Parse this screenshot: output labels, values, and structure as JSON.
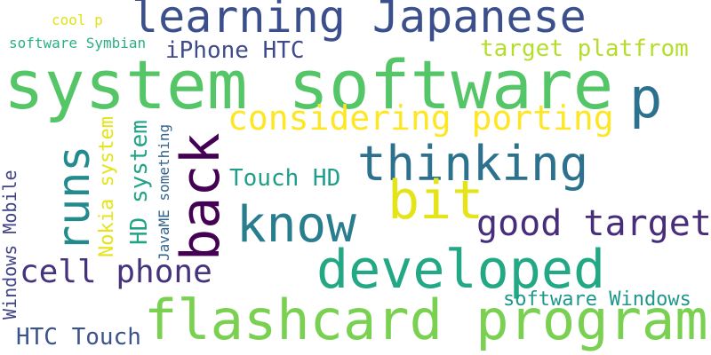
{
  "words": [
    {
      "id": "learning-japanese",
      "text": "learning Japanese",
      "color": "#3b4f8c"
    },
    {
      "id": "system-software",
      "text": "system software",
      "color": "#55c667"
    },
    {
      "id": "cool-p",
      "text": "cool p",
      "color": "#dfe318"
    },
    {
      "id": "software-symbian",
      "text": "software Symbian",
      "color": "#2ab07f"
    },
    {
      "id": "iphone-htc",
      "text": "iPhone HTC",
      "color": "#3e4a89"
    },
    {
      "id": "target-platfrom",
      "text": "target platfrom",
      "color": "#b5de2b"
    },
    {
      "id": "p",
      "text": "p",
      "color": "#2c728e"
    },
    {
      "id": "considering-porting",
      "text": "considering porting",
      "color": "#fde725"
    },
    {
      "id": "runs",
      "text": "runs",
      "color": "#238a8d"
    },
    {
      "id": "back",
      "text": "back",
      "color": "#440154"
    },
    {
      "id": "thinking",
      "text": "thinking",
      "color": "#2c728e"
    },
    {
      "id": "nokia-system",
      "text": "Nokia system",
      "color": "#e4e419"
    },
    {
      "id": "hd-system",
      "text": "HD system",
      "color": "#20a486"
    },
    {
      "id": "javame-something",
      "text": "JavaME something",
      "color": "#33638d"
    },
    {
      "id": "windows-mobile",
      "text": "Windows Mobile",
      "color": "#414487"
    },
    {
      "id": "touch-hd",
      "text": "Touch HD",
      "color": "#1f9e89"
    },
    {
      "id": "bit",
      "text": "bit",
      "color": "#e5e419"
    },
    {
      "id": "know",
      "text": "know",
      "color": "#287d8e"
    },
    {
      "id": "good-target",
      "text": "good target",
      "color": "#472d7b"
    },
    {
      "id": "cell-phone",
      "text": "cell phone",
      "color": "#46337e"
    },
    {
      "id": "developed",
      "text": "developed",
      "color": "#22a884"
    },
    {
      "id": "software-windows",
      "text": "software Windows",
      "color": "#1f988b"
    },
    {
      "id": "flashcard-program",
      "text": "flashcard program",
      "color": "#7ad151"
    },
    {
      "id": "htc-touch",
      "text": "HTC Touch",
      "color": "#3b528b"
    }
  ]
}
